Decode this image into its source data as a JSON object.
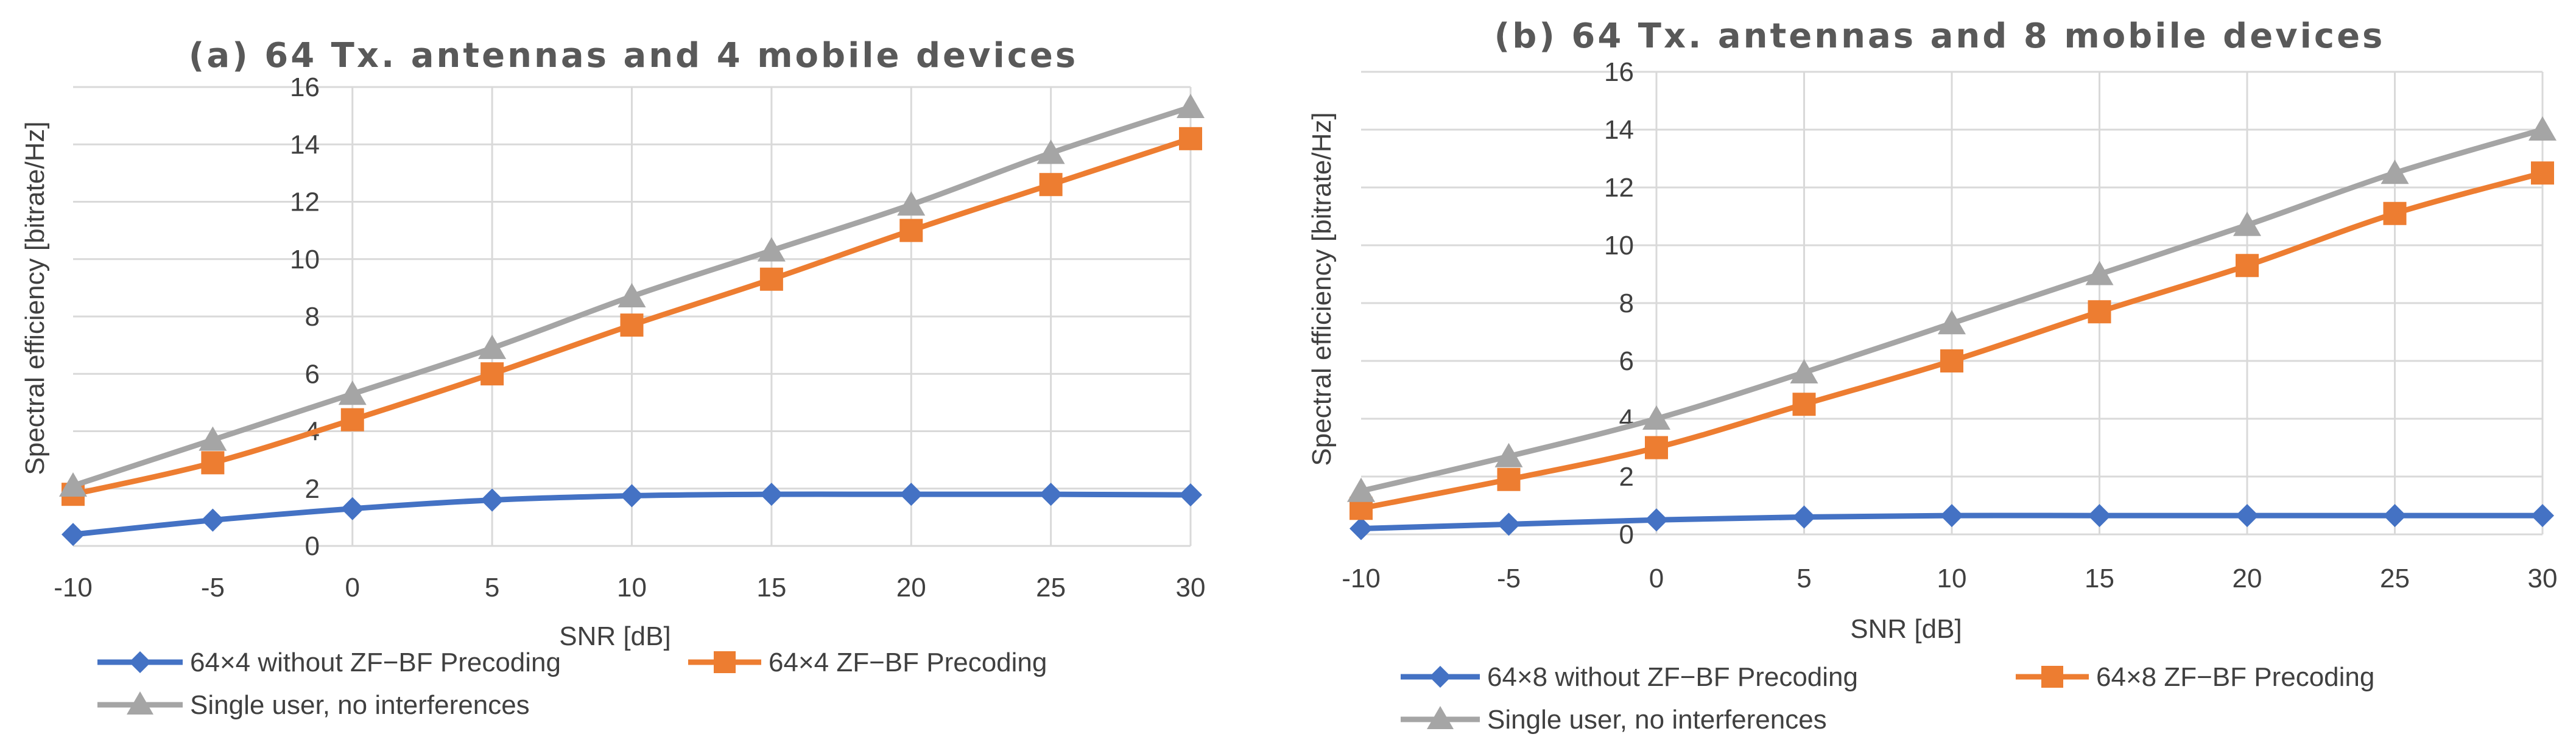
{
  "chart_data": [
    {
      "type": "line",
      "title": "(a) 64 Tx. antennas and 4 mobile devices",
      "xlabel": "SNR [dB]",
      "ylabel": "Spectral efficiency [bitrate/Hz]",
      "categories": [
        "-10",
        "-5",
        "0",
        "5",
        "10",
        "15",
        "20",
        "25",
        "30"
      ],
      "x": [
        -10,
        -5,
        0,
        5,
        10,
        15,
        20,
        25,
        30
      ],
      "ylim": [
        0,
        16
      ],
      "yticks": [
        "0",
        "2",
        "4",
        "6",
        "8",
        "10",
        "12",
        "14",
        "16"
      ],
      "grid": true,
      "legend_position": "bottom",
      "series": [
        {
          "name": "64×4 without ZF−BF Precoding",
          "color": "#4472c4",
          "marker": "diamond",
          "values": [
            0.4,
            0.9,
            1.3,
            1.6,
            1.75,
            1.8,
            1.8,
            1.8,
            1.78
          ]
        },
        {
          "name": "64×4 ZF−BF Precoding",
          "color": "#ed7d31",
          "marker": "square",
          "values": [
            1.8,
            2.9,
            4.4,
            6.0,
            7.7,
            9.3,
            11.0,
            12.6,
            14.2
          ]
        },
        {
          "name": "Single user, no interferences",
          "color": "#a5a5a5",
          "marker": "triangle",
          "values": [
            2.1,
            3.7,
            5.3,
            6.9,
            8.7,
            10.3,
            11.9,
            13.7,
            15.3
          ]
        }
      ]
    },
    {
      "type": "line",
      "title": "(b) 64 Tx. antennas and 8 mobile devices",
      "xlabel": "SNR [dB]",
      "ylabel": "Spectral efficiency [bitrate/Hz]",
      "categories": [
        "-10",
        "-5",
        "0",
        "5",
        "10",
        "15",
        "20",
        "25",
        "30"
      ],
      "x": [
        -10,
        -5,
        0,
        5,
        10,
        15,
        20,
        25,
        30
      ],
      "ylim": [
        0,
        16
      ],
      "yticks": [
        "0",
        "2",
        "4",
        "6",
        "8",
        "10",
        "12",
        "14",
        "16"
      ],
      "grid": true,
      "legend_position": "bottom",
      "series": [
        {
          "name": "64×8 without ZF−BF Precoding",
          "color": "#4472c4",
          "marker": "diamond",
          "values": [
            0.2,
            0.35,
            0.5,
            0.6,
            0.65,
            0.65,
            0.65,
            0.65,
            0.65
          ]
        },
        {
          "name": "64×8 ZF−BF Precoding",
          "color": "#ed7d31",
          "marker": "square",
          "values": [
            0.9,
            1.9,
            3.0,
            4.5,
            6.0,
            7.7,
            9.3,
            11.1,
            12.5
          ]
        },
        {
          "name": "Single user, no interferences",
          "color": "#a5a5a5",
          "marker": "triangle",
          "values": [
            1.5,
            2.7,
            4.0,
            5.6,
            7.3,
            9.0,
            10.7,
            12.5,
            14.0
          ]
        }
      ]
    }
  ]
}
